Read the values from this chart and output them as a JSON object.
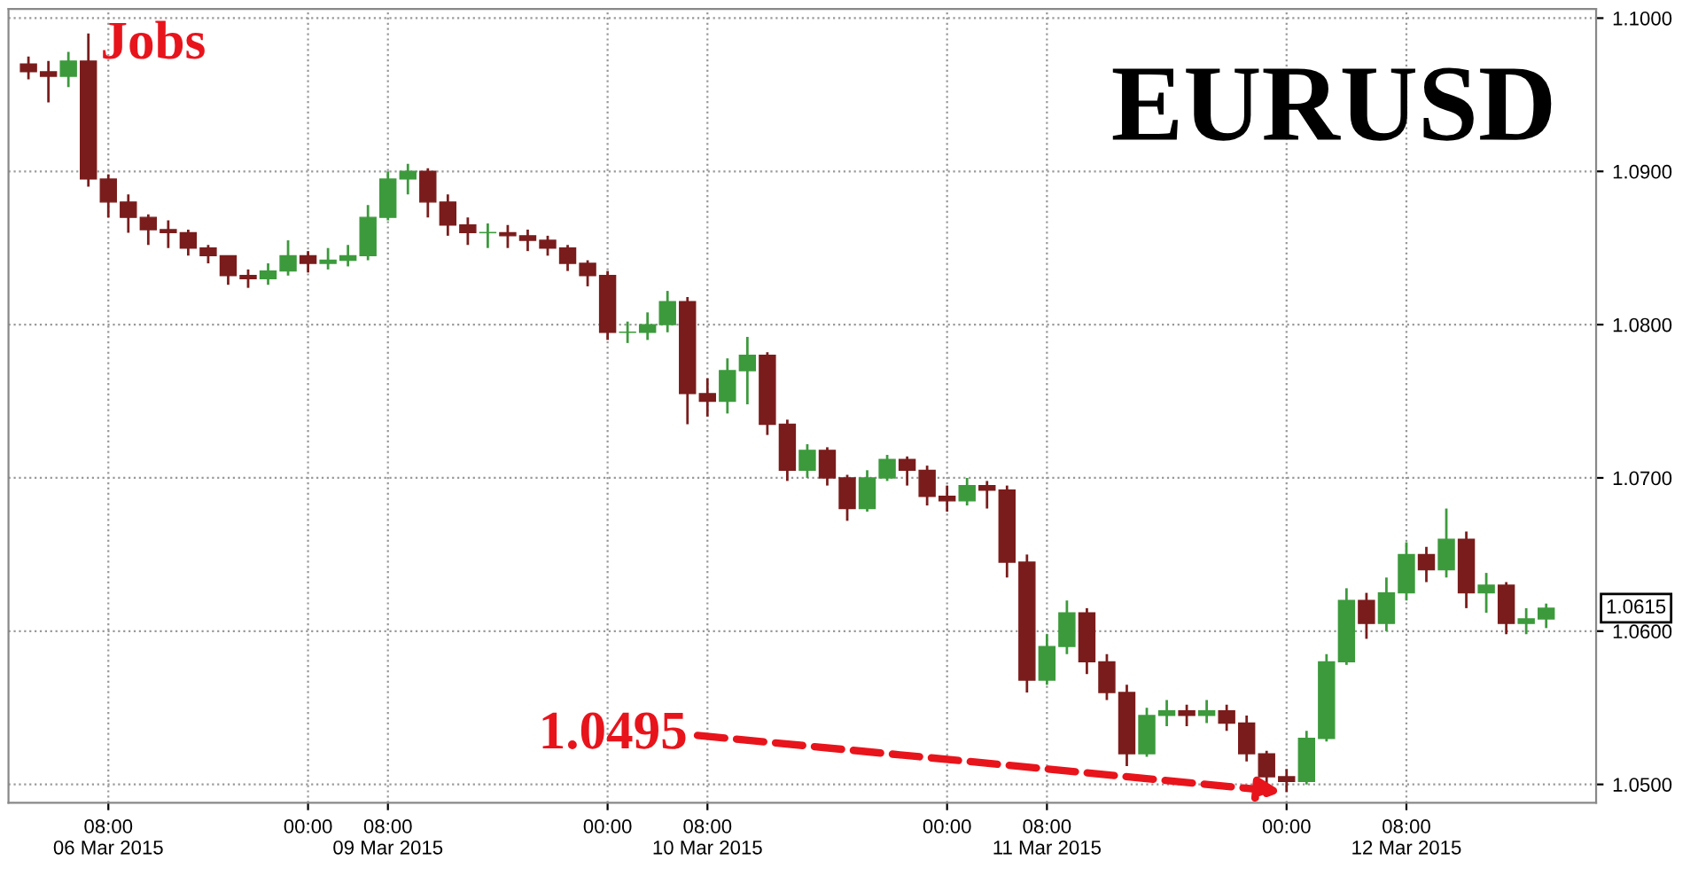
{
  "chart_data": {
    "type": "candlestick",
    "title": "EURUSD",
    "categories": [
      null,
      null,
      null,
      null,
      "08:00\n06 Mar 2015",
      null,
      null,
      null,
      null,
      null,
      null,
      null,
      null,
      null,
      "00:00",
      null,
      null,
      null,
      "08:00\n09 Mar 2015",
      null,
      null,
      null,
      null,
      null,
      null,
      null,
      null,
      null,
      null,
      "00:00",
      null,
      null,
      null,
      null,
      "08:00\n10 Mar 2015",
      null,
      null,
      null,
      null,
      null,
      null,
      null,
      null,
      null,
      null,
      null,
      "00:00",
      null,
      null,
      null,
      null,
      "08:00\n11 Mar 2015",
      null,
      null,
      null,
      null,
      null,
      null,
      null,
      null,
      null,
      null,
      null,
      "00:00",
      null,
      null,
      null,
      null,
      null,
      "08:00\n12 Mar 2015",
      null,
      null,
      null,
      null,
      null,
      null,
      null
    ],
    "ohlc": [
      [
        1.097,
        1.0975,
        1.096,
        1.0965
      ],
      [
        1.0965,
        1.0972,
        1.0945,
        1.0962
      ],
      [
        1.0962,
        1.0978,
        1.0955,
        1.0972
      ],
      [
        1.0972,
        1.099,
        1.089,
        1.0895
      ],
      [
        1.0895,
        1.0898,
        1.087,
        1.088
      ],
      [
        1.088,
        1.0885,
        1.086,
        1.087
      ],
      [
        1.087,
        1.0872,
        1.0852,
        1.0862
      ],
      [
        1.0862,
        1.0868,
        1.085,
        1.086
      ],
      [
        1.086,
        1.0862,
        1.0845,
        1.085
      ],
      [
        1.085,
        1.0852,
        1.084,
        1.0845
      ],
      [
        1.0845,
        1.0845,
        1.0826,
        1.0832
      ],
      [
        1.0832,
        1.0836,
        1.0824,
        1.083
      ],
      [
        1.083,
        1.084,
        1.0826,
        1.0835
      ],
      [
        1.0835,
        1.0855,
        1.0832,
        1.0845
      ],
      [
        1.0845,
        1.0848,
        1.0834,
        1.084
      ],
      [
        1.084,
        1.085,
        1.0836,
        1.0842
      ],
      [
        1.0842,
        1.0852,
        1.0838,
        1.0845
      ],
      [
        1.0845,
        1.0878,
        1.0842,
        1.087
      ],
      [
        1.087,
        1.09,
        1.0868,
        1.0895
      ],
      [
        1.0895,
        1.0905,
        1.0885,
        1.09
      ],
      [
        1.09,
        1.0902,
        1.087,
        1.088
      ],
      [
        1.088,
        1.0885,
        1.0858,
        1.0865
      ],
      [
        1.0865,
        1.087,
        1.0852,
        1.086
      ],
      [
        1.086,
        1.0866,
        1.085,
        1.086
      ],
      [
        1.086,
        1.0865,
        1.085,
        1.0858
      ],
      [
        1.0858,
        1.0862,
        1.0848,
        1.0855
      ],
      [
        1.0855,
        1.0858,
        1.0845,
        1.085
      ],
      [
        1.085,
        1.0852,
        1.0835,
        1.084
      ],
      [
        1.084,
        1.0842,
        1.0825,
        1.0832
      ],
      [
        1.0832,
        1.0835,
        1.079,
        1.0795
      ],
      [
        1.0795,
        1.0802,
        1.0788,
        1.0795
      ],
      [
        1.0795,
        1.0808,
        1.079,
        1.08
      ],
      [
        1.08,
        1.0822,
        1.0795,
        1.0815
      ],
      [
        1.0815,
        1.0818,
        1.0735,
        1.0755
      ],
      [
        1.0755,
        1.0765,
        1.074,
        1.075
      ],
      [
        1.075,
        1.0778,
        1.0742,
        1.077
      ],
      [
        1.077,
        1.0792,
        1.0748,
        1.078
      ],
      [
        1.078,
        1.0782,
        1.0728,
        1.0735
      ],
      [
        1.0735,
        1.0738,
        1.0698,
        1.0705
      ],
      [
        1.0705,
        1.0722,
        1.07,
        1.0718
      ],
      [
        1.0718,
        1.072,
        1.0695,
        1.07
      ],
      [
        1.07,
        1.0702,
        1.0672,
        1.068
      ],
      [
        1.068,
        1.0705,
        1.0678,
        1.07
      ],
      [
        1.07,
        1.0715,
        1.0698,
        1.0712
      ],
      [
        1.0712,
        1.0714,
        1.0695,
        1.0705
      ],
      [
        1.0705,
        1.0708,
        1.0682,
        1.0688
      ],
      [
        1.0688,
        1.0695,
        1.0678,
        1.0685
      ],
      [
        1.0685,
        1.07,
        1.0682,
        1.0695
      ],
      [
        1.0695,
        1.0698,
        1.068,
        1.0692
      ],
      [
        1.0692,
        1.0695,
        1.0635,
        1.0645
      ],
      [
        1.0645,
        1.065,
        1.056,
        1.0568
      ],
      [
        1.0568,
        1.0598,
        1.0565,
        1.059
      ],
      [
        1.059,
        1.062,
        1.0585,
        1.0612
      ],
      [
        1.0612,
        1.0615,
        1.0572,
        1.058
      ],
      [
        1.058,
        1.0585,
        1.0555,
        1.056
      ],
      [
        1.056,
        1.0565,
        1.0512,
        1.052
      ],
      [
        1.052,
        1.055,
        1.0518,
        1.0545
      ],
      [
        1.0545,
        1.0555,
        1.0538,
        1.0548
      ],
      [
        1.0548,
        1.0552,
        1.0538,
        1.0545
      ],
      [
        1.0545,
        1.0555,
        1.054,
        1.0548
      ],
      [
        1.0548,
        1.0552,
        1.0535,
        1.054
      ],
      [
        1.054,
        1.0545,
        1.0515,
        1.052
      ],
      [
        1.052,
        1.0522,
        1.0498,
        1.0505
      ],
      [
        1.0505,
        1.051,
        1.0495,
        1.0502
      ],
      [
        1.0502,
        1.0535,
        1.05,
        1.053
      ],
      [
        1.053,
        1.0585,
        1.0528,
        1.058
      ],
      [
        1.058,
        1.0628,
        1.0578,
        1.062
      ],
      [
        1.062,
        1.0625,
        1.0595,
        1.0605
      ],
      [
        1.0605,
        1.0635,
        1.06,
        1.0625
      ],
      [
        1.0625,
        1.0658,
        1.062,
        1.065
      ],
      [
        1.065,
        1.0655,
        1.0632,
        1.064
      ],
      [
        1.064,
        1.068,
        1.0635,
        1.066
      ],
      [
        1.066,
        1.0665,
        1.0615,
        1.0625
      ],
      [
        1.0625,
        1.0638,
        1.0612,
        1.063
      ],
      [
        1.063,
        1.0632,
        1.0598,
        1.0605
      ],
      [
        1.0605,
        1.0615,
        1.0598,
        1.0608
      ],
      [
        1.0608,
        1.0618,
        1.0602,
        1.0615
      ]
    ],
    "ylim": [
      1.0488,
      1.1006
    ],
    "yticks": [
      {
        "value": 1.05,
        "label": "1.0500"
      },
      {
        "value": 1.06,
        "label": "1.0600"
      },
      {
        "value": 1.07,
        "label": "1.0700"
      },
      {
        "value": 1.08,
        "label": "1.0800"
      },
      {
        "value": 1.09,
        "label": "1.0900"
      },
      {
        "value": 1.1,
        "label": "1.1000"
      }
    ],
    "annotations": [
      "Jobs",
      "1.0495",
      "1.0615"
    ],
    "grid": true,
    "line_style": "dotted"
  }
}
